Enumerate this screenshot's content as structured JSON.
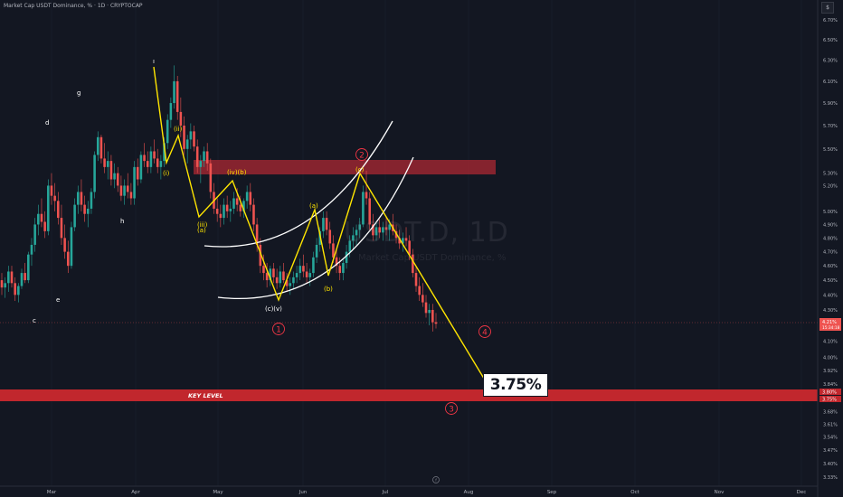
{
  "header": {
    "title": "Market Cap USDT Dominance, % · 1D · CRYPTOCAP",
    "scale_button": "$"
  },
  "watermark": {
    "symbol": "USDT.D, 1D",
    "subtitle": "Market Cap USDT Dominance, %"
  },
  "colors": {
    "background": "#131722",
    "up": "#26a69a",
    "down": "#ef5350",
    "wave_line": "#ffe500",
    "channel": "#ffffff",
    "zone": "#b22833",
    "key_level": "#c1272d",
    "circle_label": "#f23645"
  },
  "chart_data": {
    "type": "candlestick",
    "y_axis": {
      "scale": "log",
      "range": [
        3.3,
        6.8
      ],
      "ticks": [
        "6.70%",
        "6.50%",
        "6.30%",
        "6.10%",
        "5.90%",
        "5.70%",
        "5.50%",
        "5.30%",
        "5.20%",
        "5.00%",
        "4.90%",
        "4.80%",
        "4.70%",
        "4.60%",
        "4.50%",
        "4.40%",
        "4.30%",
        "4.10%",
        "4.00%",
        "3.92%",
        "3.84%",
        "3.76%",
        "3.68%",
        "3.61%",
        "3.54%",
        "3.47%",
        "3.40%",
        "3.33%"
      ]
    },
    "x_axis": {
      "ticks": [
        "Mar",
        "Apr",
        "May",
        "Jun",
        "Jul",
        "Aug",
        "Sep",
        "Oct",
        "Nov",
        "Dec"
      ]
    },
    "price_labels": {
      "current": "4.21%",
      "countdown": "15:34:18",
      "key_upper": "3.80%",
      "key_lower": "3.75%"
    },
    "ohlc": [
      [
        4.5,
        4.55,
        4.4,
        4.45
      ],
      [
        4.45,
        4.52,
        4.38,
        4.48
      ],
      [
        4.48,
        4.6,
        4.42,
        4.56
      ],
      [
        4.56,
        4.6,
        4.45,
        4.48
      ],
      [
        4.48,
        4.52,
        4.36,
        4.4
      ],
      [
        4.4,
        4.48,
        4.35,
        4.46
      ],
      [
        4.46,
        4.58,
        4.44,
        4.55
      ],
      [
        4.55,
        4.62,
        4.48,
        4.5
      ],
      [
        4.5,
        4.7,
        4.48,
        4.68
      ],
      [
        4.68,
        4.8,
        4.6,
        4.75
      ],
      [
        4.75,
        4.95,
        4.7,
        4.9
      ],
      [
        4.9,
        5.05,
        4.82,
        4.98
      ],
      [
        4.98,
        5.1,
        4.88,
        4.92
      ],
      [
        4.92,
        5.0,
        4.8,
        4.85
      ],
      [
        4.85,
        5.25,
        4.82,
        5.2
      ],
      [
        5.2,
        5.3,
        5.05,
        5.12
      ],
      [
        5.12,
        5.22,
        5.0,
        5.08
      ],
      [
        5.08,
        5.15,
        4.9,
        4.95
      ],
      [
        4.95,
        5.05,
        4.75,
        4.8
      ],
      [
        4.8,
        4.9,
        4.65,
        4.7
      ],
      [
        4.7,
        4.78,
        4.55,
        4.6
      ],
      [
        4.6,
        4.92,
        4.58,
        4.88
      ],
      [
        4.88,
        5.1,
        4.85,
        5.05
      ],
      [
        5.05,
        5.2,
        4.98,
        5.15
      ],
      [
        5.15,
        5.25,
        5.0,
        5.05
      ],
      [
        5.05,
        5.12,
        4.92,
        4.98
      ],
      [
        4.98,
        5.08,
        4.88,
        5.02
      ],
      [
        5.02,
        5.18,
        4.98,
        5.15
      ],
      [
        5.15,
        5.48,
        5.1,
        5.45
      ],
      [
        5.45,
        5.65,
        5.4,
        5.6
      ],
      [
        5.6,
        5.62,
        5.38,
        5.42
      ],
      [
        5.42,
        5.55,
        5.3,
        5.35
      ],
      [
        5.35,
        5.48,
        5.25,
        5.4
      ],
      [
        5.4,
        5.45,
        5.2,
        5.25
      ],
      [
        5.25,
        5.38,
        5.18,
        5.3
      ],
      [
        5.3,
        5.35,
        5.15,
        5.2
      ],
      [
        5.2,
        5.28,
        5.08,
        5.12
      ],
      [
        5.12,
        5.25,
        5.05,
        5.2
      ],
      [
        5.2,
        5.3,
        5.1,
        5.15
      ],
      [
        5.15,
        5.22,
        5.05,
        5.1
      ],
      [
        5.1,
        5.4,
        5.05,
        5.35
      ],
      [
        5.35,
        5.42,
        5.2,
        5.25
      ],
      [
        5.25,
        5.48,
        5.22,
        5.45
      ],
      [
        5.45,
        5.55,
        5.35,
        5.4
      ],
      [
        5.4,
        5.48,
        5.3,
        5.35
      ],
      [
        5.35,
        5.52,
        5.3,
        5.48
      ],
      [
        5.48,
        5.58,
        5.38,
        5.42
      ],
      [
        5.42,
        5.5,
        5.3,
        5.35
      ],
      [
        5.35,
        5.45,
        5.25,
        5.4
      ],
      [
        5.4,
        5.6,
        5.35,
        5.55
      ],
      [
        5.55,
        5.8,
        5.5,
        5.75
      ],
      [
        5.75,
        5.95,
        5.68,
        5.9
      ],
      [
        5.9,
        6.25,
        5.85,
        6.1
      ],
      [
        6.1,
        6.15,
        5.75,
        5.82
      ],
      [
        5.82,
        5.95,
        5.6,
        5.7
      ],
      [
        5.7,
        5.78,
        5.45,
        5.5
      ],
      [
        5.5,
        5.62,
        5.38,
        5.58
      ],
      [
        5.58,
        5.72,
        5.5,
        5.65
      ],
      [
        5.65,
        5.7,
        5.48,
        5.52
      ],
      [
        5.52,
        5.58,
        5.3,
        5.35
      ],
      [
        5.35,
        5.45,
        5.22,
        5.4
      ],
      [
        5.4,
        5.52,
        5.35,
        5.48
      ],
      [
        5.48,
        5.55,
        5.32,
        5.38
      ],
      [
        5.38,
        5.42,
        5.1,
        5.15
      ],
      [
        5.15,
        5.22,
        4.98,
        5.02
      ],
      [
        5.02,
        5.1,
        4.92,
        4.98
      ],
      [
        4.98,
        5.05,
        4.88,
        4.95
      ],
      [
        4.95,
        5.1,
        4.9,
        5.05
      ],
      [
        5.05,
        5.12,
        4.95,
        5.0
      ],
      [
        5.0,
        5.08,
        4.92,
        5.02
      ],
      [
        5.02,
        5.15,
        4.98,
        5.1
      ],
      [
        5.1,
        5.18,
        5.0,
        5.05
      ],
      [
        5.05,
        5.12,
        4.96,
        5.0
      ],
      [
        5.0,
        5.1,
        4.95,
        5.08
      ],
      [
        5.08,
        5.2,
        5.02,
        5.15
      ],
      [
        5.15,
        5.22,
        5.0,
        5.05
      ],
      [
        5.05,
        5.1,
        4.85,
        4.9
      ],
      [
        4.9,
        4.95,
        4.7,
        4.75
      ],
      [
        4.75,
        4.8,
        4.55,
        4.6
      ],
      [
        4.6,
        4.68,
        4.5,
        4.55
      ],
      [
        4.55,
        4.62,
        4.45,
        4.5
      ],
      [
        4.5,
        4.6,
        4.46,
        4.58
      ],
      [
        4.58,
        4.62,
        4.48,
        4.52
      ],
      [
        4.52,
        4.58,
        4.44,
        4.48
      ],
      [
        4.48,
        4.6,
        4.45,
        4.56
      ],
      [
        4.56,
        4.62,
        4.48,
        4.5
      ],
      [
        4.5,
        4.55,
        4.42,
        4.46
      ],
      [
        4.46,
        4.52,
        4.4,
        4.48
      ],
      [
        4.48,
        4.56,
        4.44,
        4.52
      ],
      [
        4.52,
        4.6,
        4.48,
        4.55
      ],
      [
        4.55,
        4.65,
        4.5,
        4.6
      ],
      [
        4.6,
        4.68,
        4.52,
        4.56
      ],
      [
        4.56,
        4.62,
        4.48,
        4.52
      ],
      [
        4.52,
        4.58,
        4.46,
        4.55
      ],
      [
        4.55,
        4.7,
        4.52,
        4.66
      ],
      [
        4.66,
        4.8,
        4.62,
        4.75
      ],
      [
        4.75,
        4.88,
        4.7,
        4.85
      ],
      [
        4.85,
        5.0,
        4.8,
        4.95
      ],
      [
        4.95,
        5.0,
        4.82,
        4.86
      ],
      [
        4.86,
        4.92,
        4.72,
        4.76
      ],
      [
        4.76,
        4.82,
        4.62,
        4.66
      ],
      [
        4.66,
        4.72,
        4.55,
        4.6
      ],
      [
        4.6,
        4.66,
        4.5,
        4.55
      ],
      [
        4.55,
        4.65,
        4.5,
        4.62
      ],
      [
        4.62,
        4.75,
        4.58,
        4.7
      ],
      [
        4.7,
        4.82,
        4.66,
        4.78
      ],
      [
        4.78,
        4.88,
        4.72,
        4.82
      ],
      [
        4.82,
        4.9,
        4.75,
        4.86
      ],
      [
        4.86,
        4.95,
        4.8,
        4.9
      ],
      [
        4.9,
        5.2,
        4.88,
        5.15
      ],
      [
        5.15,
        5.32,
        5.05,
        5.1
      ],
      [
        5.1,
        5.15,
        4.85,
        4.9
      ],
      [
        4.9,
        4.98,
        4.78,
        4.82
      ],
      [
        4.82,
        4.92,
        4.78,
        4.88
      ],
      [
        4.88,
        4.94,
        4.8,
        4.84
      ],
      [
        4.84,
        4.92,
        4.78,
        4.88
      ],
      [
        4.88,
        4.96,
        4.82,
        4.86
      ],
      [
        4.86,
        4.94,
        4.78,
        4.9
      ],
      [
        4.9,
        4.98,
        4.82,
        4.85
      ],
      [
        4.85,
        4.9,
        4.76,
        4.8
      ],
      [
        4.8,
        4.86,
        4.72,
        4.76
      ],
      [
        4.76,
        4.84,
        4.7,
        4.8
      ],
      [
        4.8,
        4.88,
        4.74,
        4.78
      ],
      [
        4.78,
        4.82,
        4.64,
        4.68
      ],
      [
        4.68,
        4.72,
        4.52,
        4.55
      ],
      [
        4.55,
        4.6,
        4.42,
        4.46
      ],
      [
        4.46,
        4.52,
        4.36,
        4.4
      ],
      [
        4.4,
        4.48,
        4.32,
        4.35
      ],
      [
        4.35,
        4.4,
        4.25,
        4.28
      ],
      [
        4.28,
        4.34,
        4.2,
        4.3
      ],
      [
        4.3,
        4.34,
        4.16,
        4.22
      ],
      [
        4.22,
        4.28,
        4.18,
        4.21
      ]
    ]
  },
  "annotations": {
    "zone_top": 5.36,
    "zone_bottom": 5.26,
    "key_level": {
      "label": "KEY LEVEL",
      "top": 3.8,
      "bottom": 3.75
    },
    "target": "3.75%",
    "letters": [
      "c",
      "d",
      "e",
      "g",
      "h",
      "ı"
    ],
    "wave_labels": [
      "(i)",
      "(ii)",
      "(iii)",
      "(iv)(b)",
      "(a)",
      "(b)",
      "(c)",
      "(c)(v)",
      "(a)"
    ],
    "circled": [
      "1",
      "2",
      "3",
      "4"
    ]
  },
  "footer": {
    "badge_icon": "tradingview-logo-icon"
  }
}
